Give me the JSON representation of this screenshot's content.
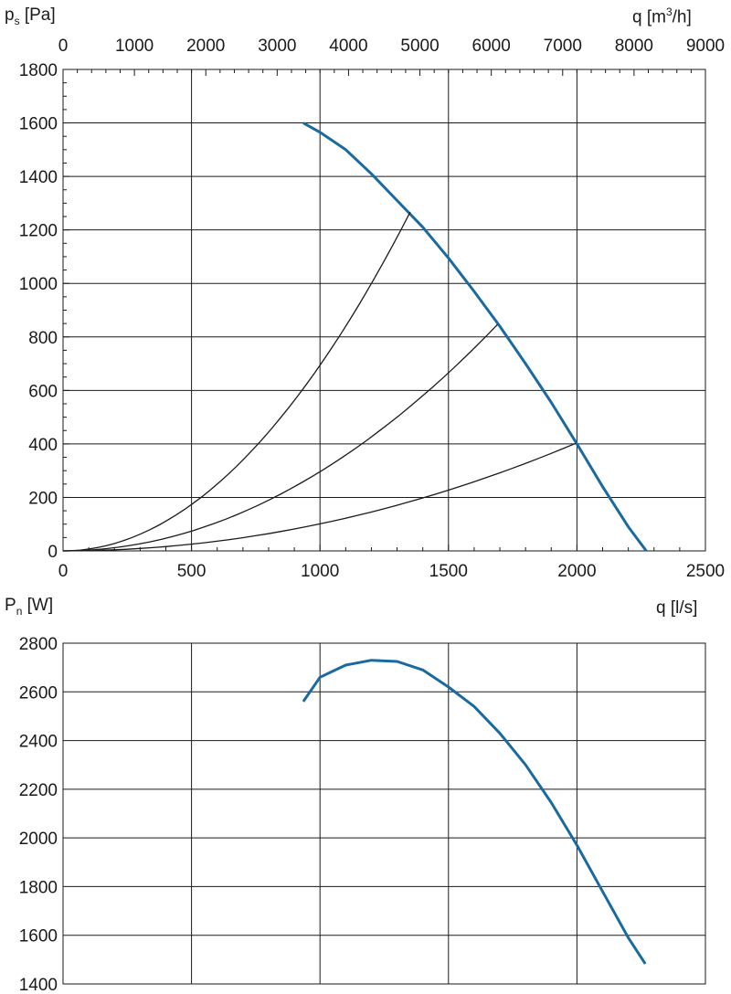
{
  "chart_data": [
    {
      "type": "line",
      "title": "",
      "ylabel": "p",
      "ylabel_sub": "s",
      "ylabel_unit": "[Pa]",
      "xlabel": "q [l/s]",
      "x2label": "q [m",
      "x2label_sup": "3",
      "x2label_end": "/h]",
      "xlim": [
        0,
        2500
      ],
      "ylim": [
        0,
        1800
      ],
      "x2lim": [
        0,
        9000
      ],
      "xticks": [
        "0",
        "500",
        "1000",
        "1500",
        "2000",
        "2500"
      ],
      "yticks": [
        "0",
        "200",
        "400",
        "600",
        "800",
        "1000",
        "1200",
        "1400",
        "1600",
        "1800"
      ],
      "x2ticks": [
        "0",
        "1000",
        "2000",
        "3000",
        "4000",
        "5000",
        "6000",
        "7000",
        "8000",
        "9000"
      ],
      "grid": true,
      "series": [
        {
          "name": "fan-curve",
          "color": "#1a6aa0",
          "x": [
            935,
            1000,
            1100,
            1200,
            1300,
            1400,
            1500,
            1600,
            1700,
            1800,
            1900,
            2000,
            2100,
            2200,
            2270
          ],
          "y": [
            1600,
            1565,
            1500,
            1410,
            1310,
            1210,
            1095,
            970,
            840,
            700,
            555,
            400,
            240,
            90,
            0
          ]
        },
        {
          "name": "system-curve-1",
          "color": "#1a1a1a",
          "k": 0.000694,
          "x_max": 1351
        },
        {
          "name": "system-curve-2",
          "color": "#1a1a1a",
          "k": 0.000296,
          "x_max": 1691
        },
        {
          "name": "system-curve-3",
          "color": "#1a1a1a",
          "k": 0.000101,
          "x_max": 1996
        }
      ]
    },
    {
      "type": "line",
      "ylabel": "P",
      "ylabel_sub": "n",
      "ylabel_unit": "[W]",
      "xlabel": "q [l/s]",
      "xlim": [
        0,
        2500
      ],
      "ylim": [
        1400,
        2800
      ],
      "yticks": [
        "1400",
        "1600",
        "1800",
        "2000",
        "2200",
        "2400",
        "2600",
        "2800"
      ],
      "grid": true,
      "series": [
        {
          "name": "power-curve",
          "color": "#1a6aa0",
          "x": [
            935,
            1000,
            1100,
            1200,
            1300,
            1400,
            1500,
            1600,
            1700,
            1800,
            1900,
            2000,
            2100,
            2200,
            2266
          ],
          "y": [
            2560,
            2660,
            2710,
            2730,
            2725,
            2690,
            2620,
            2540,
            2430,
            2300,
            2145,
            1970,
            1780,
            1590,
            1483
          ]
        }
      ]
    }
  ]
}
